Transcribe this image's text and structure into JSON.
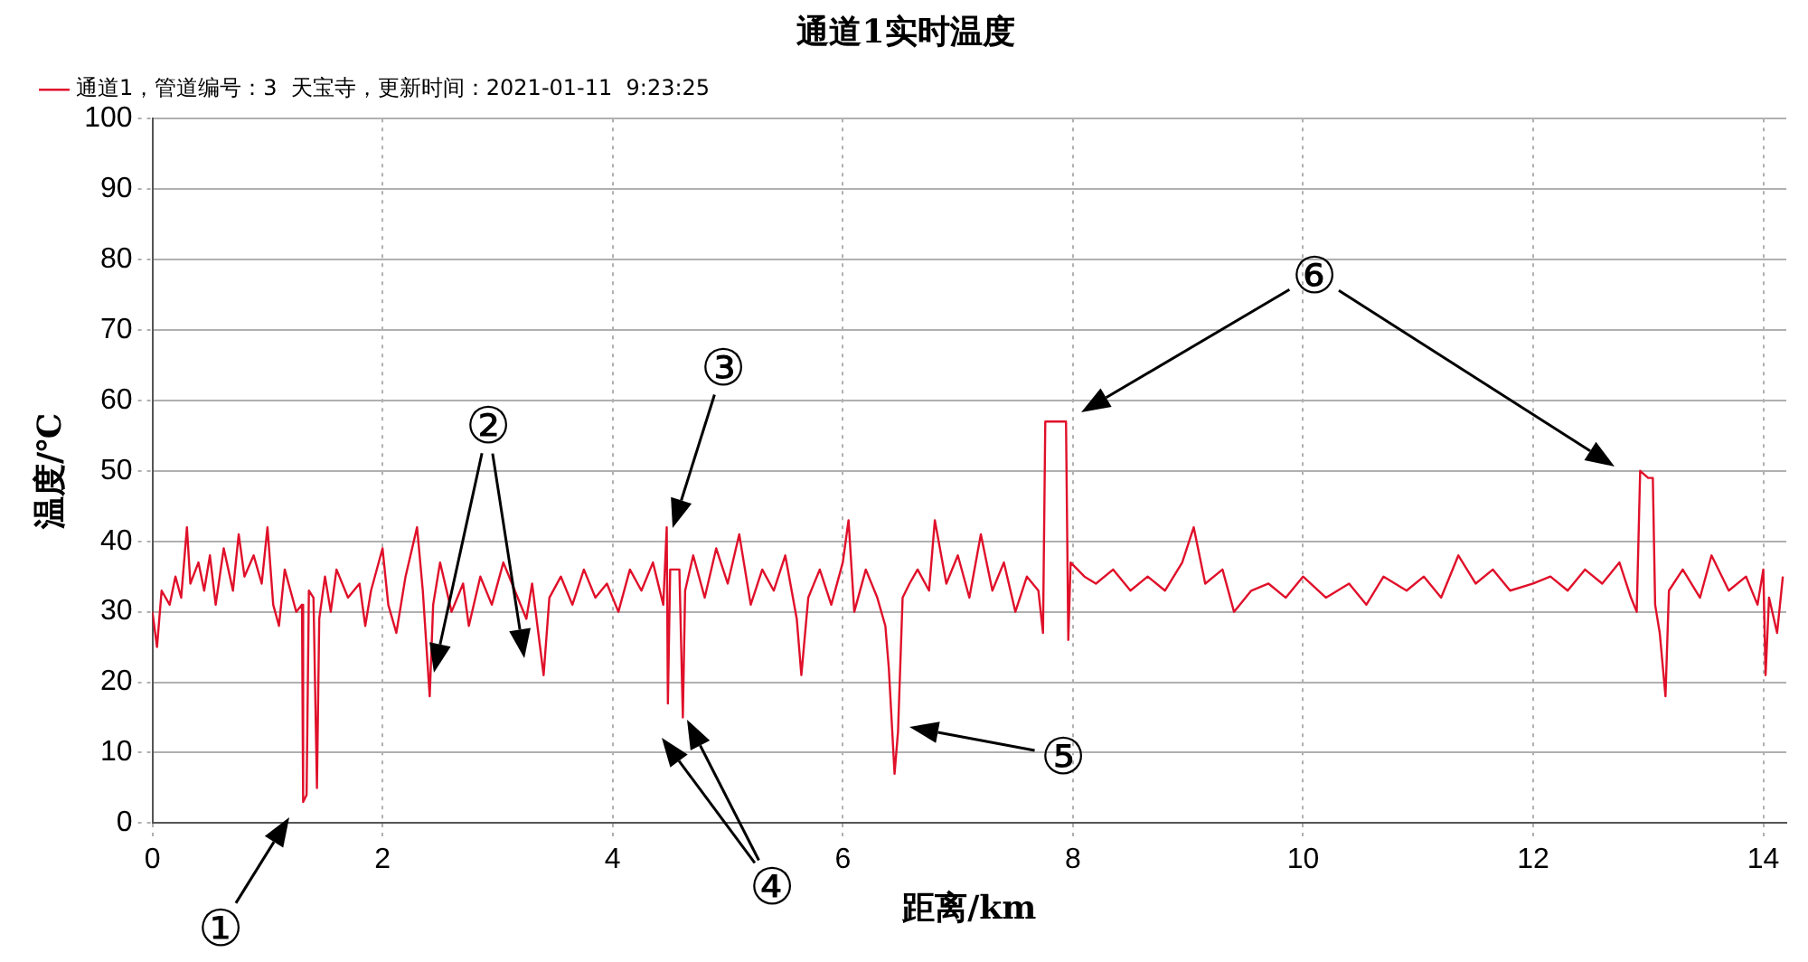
{
  "chart_data": {
    "type": "line",
    "title": "通道1实时温度",
    "xlabel": "距离/km",
    "ylabel": "温度/℃",
    "xlim": [
      0,
      14.2
    ],
    "xticks": [
      0,
      2,
      4,
      6,
      8,
      10,
      12,
      14
    ],
    "ylim": [
      0,
      100
    ],
    "yticks": [
      0,
      10,
      20,
      30,
      40,
      50,
      60,
      70,
      80,
      90,
      100
    ],
    "grid": true,
    "legend": "top left",
    "marker": "none",
    "line_style": "solid",
    "series": [
      {
        "name": "通道1，管道编号：3  天宝寺，更新时间：2021-01-11  9:23:25",
        "color": "#e0102a",
        "x": [
          0,
          0.04,
          0.08,
          0.15,
          0.2,
          0.25,
          0.3,
          0.33,
          0.4,
          0.45,
          0.5,
          0.55,
          0.62,
          0.7,
          0.75,
          0.8,
          0.88,
          0.95,
          1.0,
          1.05,
          1.1,
          1.15,
          1.2,
          1.25,
          1.3,
          1.31,
          1.34,
          1.36,
          1.4,
          1.43,
          1.45,
          1.5,
          1.55,
          1.6,
          1.7,
          1.8,
          1.85,
          1.9,
          2.0,
          2.05,
          2.12,
          2.2,
          2.3,
          2.35,
          2.41,
          2.44,
          2.5,
          2.6,
          2.7,
          2.75,
          2.85,
          2.95,
          3.05,
          3.15,
          3.25,
          3.3,
          3.4,
          3.45,
          3.55,
          3.65,
          3.75,
          3.85,
          3.95,
          4.05,
          4.15,
          4.25,
          4.35,
          4.44,
          4.47,
          4.48,
          4.5,
          4.58,
          4.61,
          4.63,
          4.7,
          4.8,
          4.9,
          5.0,
          5.1,
          5.2,
          5.3,
          5.4,
          5.5,
          5.6,
          5.64,
          5.7,
          5.8,
          5.9,
          6.0,
          6.05,
          6.1,
          6.2,
          6.3,
          6.37,
          6.4,
          6.45,
          6.48,
          6.52,
          6.58,
          6.65,
          6.75,
          6.8,
          6.9,
          7.0,
          7.1,
          7.2,
          7.3,
          7.4,
          7.5,
          7.6,
          7.7,
          7.74,
          7.76,
          7.88,
          7.94,
          7.96,
          7.98,
          8.1,
          8.2,
          8.35,
          8.5,
          8.65,
          8.8,
          8.95,
          9.05,
          9.15,
          9.3,
          9.4,
          9.55,
          9.7,
          9.85,
          10.0,
          10.2,
          10.4,
          10.55,
          10.7,
          10.9,
          11.05,
          11.2,
          11.35,
          11.5,
          11.65,
          11.8,
          12.0,
          12.15,
          12.3,
          12.45,
          12.6,
          12.75,
          12.85,
          12.9,
          12.93,
          13.0,
          13.04,
          13.06,
          13.1,
          13.15,
          13.18,
          13.3,
          13.45,
          13.55,
          13.7,
          13.85,
          13.95,
          14.0,
          14.02,
          14.05,
          14.12,
          14.17
        ],
        "values": [
          30,
          25,
          33,
          31,
          35,
          32,
          42,
          34,
          37,
          33,
          38,
          31,
          39,
          33,
          41,
          35,
          38,
          34,
          42,
          31,
          28,
          36,
          33,
          30,
          31,
          3,
          4,
          33,
          32,
          5,
          29,
          35,
          30,
          36,
          32,
          34,
          28,
          33,
          39,
          31,
          27,
          35,
          42,
          33,
          18,
          31,
          37,
          30,
          34,
          28,
          35,
          31,
          37,
          33,
          29,
          34,
          21,
          32,
          35,
          31,
          36,
          32,
          34,
          30,
          36,
          33,
          37,
          31,
          42,
          17,
          36,
          36,
          15,
          33,
          38,
          32,
          39,
          34,
          41,
          31,
          36,
          33,
          38,
          29,
          21,
          32,
          36,
          31,
          37,
          43,
          30,
          36,
          32,
          28,
          22,
          7,
          13,
          32,
          34,
          36,
          33,
          43,
          34,
          38,
          32,
          41,
          33,
          37,
          30,
          35,
          33,
          27,
          57,
          57,
          57,
          26,
          37,
          35,
          34,
          36,
          33,
          35,
          33,
          37,
          42,
          34,
          36,
          30,
          33,
          34,
          32,
          35,
          32,
          34,
          31,
          35,
          33,
          35,
          32,
          38,
          34,
          36,
          33,
          34,
          35,
          33,
          36,
          34,
          37,
          32,
          30,
          50,
          49,
          49,
          31,
          27,
          18,
          33,
          36,
          32,
          38,
          33,
          35,
          31,
          36,
          21,
          32,
          27,
          35
        ]
      }
    ],
    "annotations": [
      "①",
      "②",
      "③",
      "④",
      "⑤",
      "⑥"
    ]
  }
}
